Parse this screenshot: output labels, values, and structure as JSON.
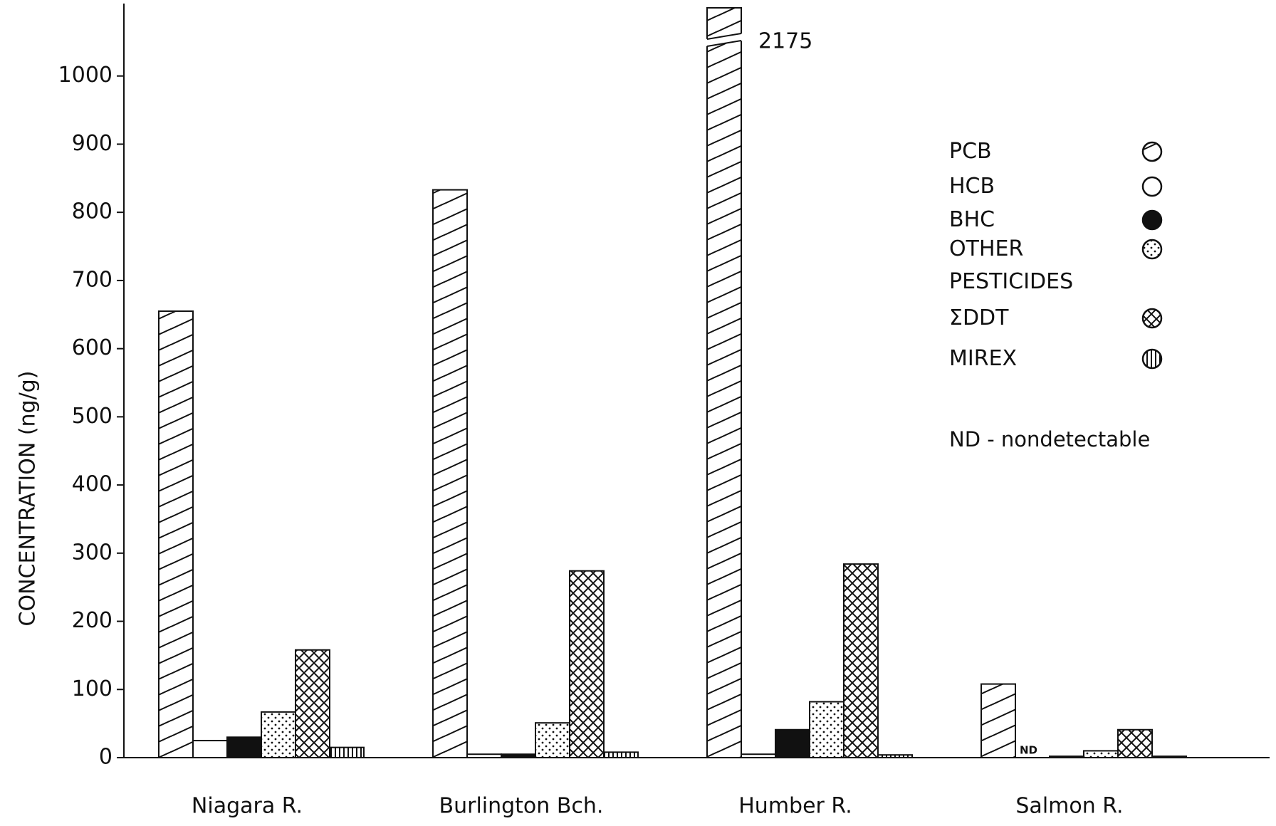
{
  "chart_data": {
    "type": "bar",
    "y_label": "CONCENTRATION (ng/g)",
    "categories": [
      "Niagara R.",
      "Burlington Bch.",
      "Humber R.",
      "Salmon R."
    ],
    "series": [
      {
        "name": "PCB",
        "pattern": "diagonal",
        "values": [
          655,
          833,
          2175,
          108
        ]
      },
      {
        "name": "HCB",
        "pattern": "none",
        "values": [
          25,
          5,
          5,
          null
        ],
        "value_labels": [
          null,
          null,
          null,
          "ND"
        ]
      },
      {
        "name": "BHC",
        "pattern": "solid",
        "values": [
          30,
          5,
          41,
          2
        ]
      },
      {
        "name": "OTHER PESTICIDES",
        "pattern": "dots",
        "values": [
          67,
          51,
          82,
          10
        ]
      },
      {
        "name": "ΣDDT",
        "pattern": "crosshatch",
        "values": [
          158,
          274,
          284,
          41
        ]
      },
      {
        "name": "MIREX",
        "pattern": "vertical",
        "values": [
          15,
          8,
          4,
          2
        ]
      }
    ],
    "ylim": [
      0,
      1100
    ],
    "yticks": [
      0,
      100,
      200,
      300,
      400,
      500,
      600,
      700,
      800,
      900,
      1000
    ],
    "axis_break": true,
    "annotation": "ND - nondetectable"
  }
}
